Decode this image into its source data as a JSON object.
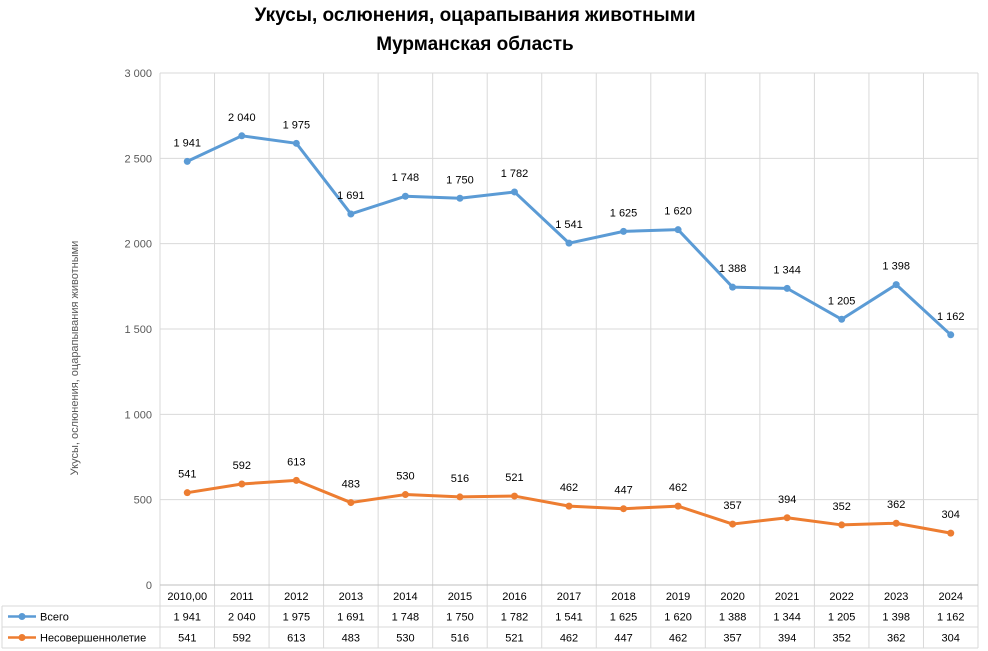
{
  "chart_data": {
    "type": "line",
    "title": "Укусы, ослюнения, оцарапывания животными",
    "subtitle": "Мурманская область",
    "ylabel": "Укусы, ослюнения, оцарапывания животными",
    "ylim": [
      0,
      3000
    ],
    "yticks": [
      "0",
      "500",
      "1 000",
      "1 500",
      "2 000",
      "2 500",
      "3 000"
    ],
    "stacked": true,
    "categories": [
      "2010,00",
      "2011",
      "2012",
      "2013",
      "2014",
      "2015",
      "2016",
      "2017",
      "2018",
      "2019",
      "2020",
      "2021",
      "2022",
      "2023",
      "2024"
    ],
    "series": [
      {
        "name": "Всего",
        "color": "#5b9bd5",
        "values": [
          1941,
          2040,
          1975,
          1691,
          1748,
          1750,
          1782,
          1541,
          1625,
          1620,
          1388,
          1344,
          1205,
          1398,
          1162
        ],
        "labels": [
          "1 941",
          "2 040",
          "1 975",
          "1 691",
          "1 748",
          "1 750",
          "1 782",
          "1 541",
          "1 625",
          "1 620",
          "1 388",
          "1 344",
          "1 205",
          "1 398",
          "1 162"
        ]
      },
      {
        "name": "Несовершеннолетие",
        "color": "#ed7d31",
        "values": [
          541,
          592,
          613,
          483,
          530,
          516,
          521,
          462,
          447,
          462,
          357,
          394,
          352,
          362,
          304
        ],
        "labels": [
          "541",
          "592",
          "613",
          "483",
          "530",
          "516",
          "521",
          "462",
          "447",
          "462",
          "357",
          "394",
          "352",
          "362",
          "304"
        ]
      }
    ],
    "grid": true,
    "data_table": true
  }
}
